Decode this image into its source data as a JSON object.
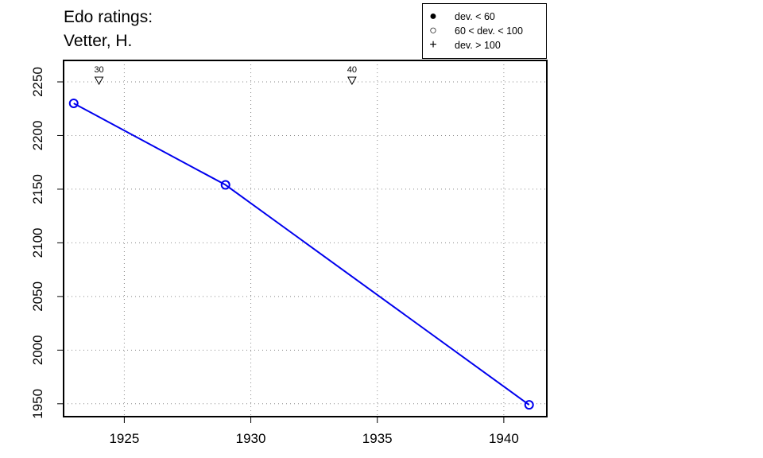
{
  "title": {
    "line1": "Edo ratings:",
    "line2": "Vetter, H."
  },
  "legend": {
    "entries": [
      {
        "symbol": "filled-circle-icon",
        "label": "dev. < 60"
      },
      {
        "symbol": "open-circle-icon",
        "label": "60 < dev. < 100"
      },
      {
        "symbol": "plus-icon",
        "label": "dev. > 100"
      }
    ]
  },
  "chart_data": {
    "type": "line",
    "series": [
      {
        "x": [
          1923,
          1929,
          1941
        ],
        "y": [
          2230,
          2154,
          1949
        ],
        "marker": "open-circle",
        "color": "#0000ee"
      }
    ],
    "markers": [
      {
        "x": 1924,
        "label": "30"
      },
      {
        "x": 1934,
        "label": "40"
      }
    ],
    "xticks": [
      1925,
      1930,
      1935,
      1940
    ],
    "yticks": [
      1950,
      2000,
      2050,
      2100,
      2150,
      2200,
      2250
    ],
    "xlim": [
      1922.6,
      1941.7
    ],
    "ylim": [
      1938,
      2270
    ],
    "grid": true,
    "colors": {
      "line": "#0000ee",
      "axis": "#000000",
      "grid": "#888888"
    }
  }
}
